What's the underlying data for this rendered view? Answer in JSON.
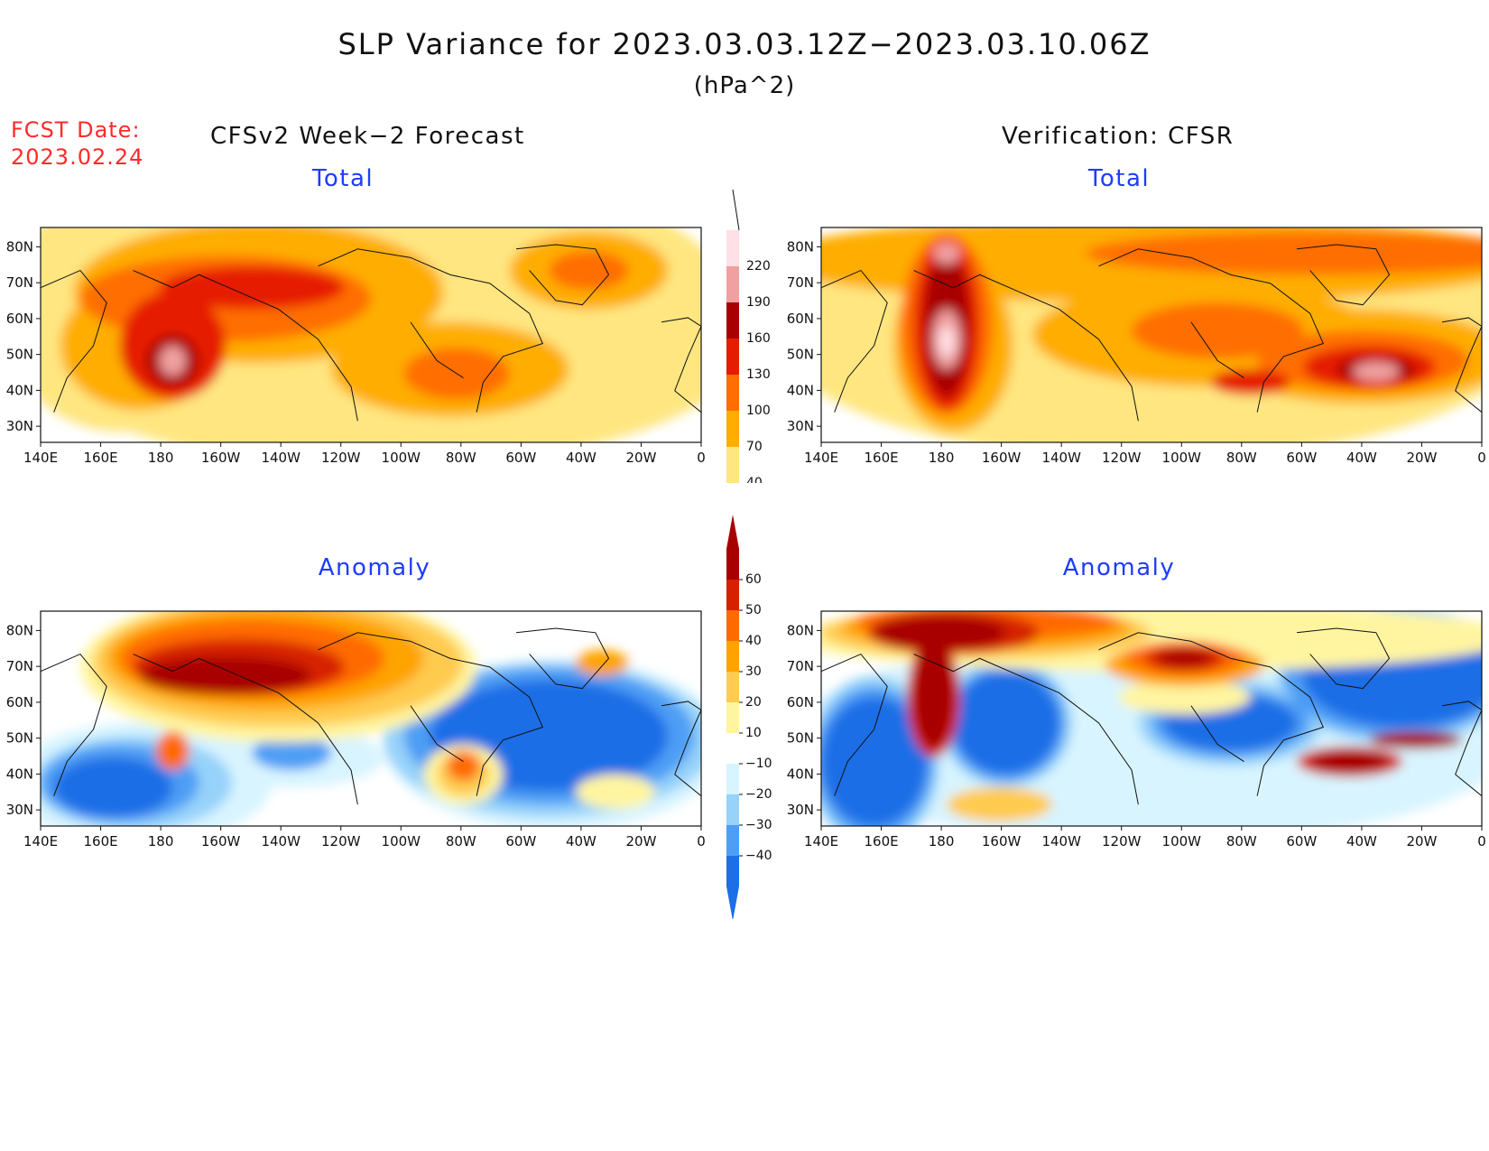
{
  "title": "SLP Variance for 2023.03.03.12Z−2023.03.10.06Z",
  "units": "(hPa^2)",
  "fcst_date": {
    "label": "FCST Date:",
    "value": "2023.02.24"
  },
  "left_header": "CFSv2 Week−2 Forecast",
  "right_header": "Verification: CFSR",
  "panels": {
    "forecast_total": {
      "label": "Total"
    },
    "verification_total": {
      "label": "Total"
    },
    "forecast_anomaly": {
      "label": "Anomaly"
    },
    "verification_anomaly": {
      "label": "Anomaly"
    }
  },
  "axes": {
    "lon_ticks": [
      "140E",
      "160E",
      "180",
      "160W",
      "140W",
      "120W",
      "100W",
      "80W",
      "60W",
      "40W",
      "20W",
      "0"
    ],
    "lat_ticks": [
      "80N",
      "70N",
      "60N",
      "50N",
      "40N",
      "30N"
    ]
  },
  "colorbars": {
    "total": {
      "levels": [
        "40",
        "70",
        "100",
        "130",
        "160",
        "190",
        "220"
      ],
      "colors": [
        "#ffe680",
        "#ffad00",
        "#ff6e00",
        "#e61c00",
        "#a80000",
        "#f0a0a0",
        "#ffe0e6"
      ]
    },
    "anomaly": {
      "levels": [
        "60",
        "50",
        "40",
        "30",
        "20",
        "10",
        "−10",
        "−20",
        "−30",
        "−40"
      ],
      "colors": [
        "#a80000",
        "#d62000",
        "#ff6a00",
        "#ffa300",
        "#ffcb50",
        "#fff5a0",
        "#ffffff",
        "#d8f4ff",
        "#96d2fa",
        "#4e9ef5",
        "#1e6ee6"
      ]
    }
  },
  "palette": {
    "t_yellow": "#ffe680",
    "t_orange": "#ffad00",
    "t_dorange": "#ff6e00",
    "t_red": "#e61c00",
    "t_dred": "#a80000",
    "t_pink": "#f0a0a0",
    "t_lpink": "#ffe0e6",
    "a_dred": "#a80000",
    "a_red": "#d62000",
    "a_orange": "#ff6a00",
    "a_lorange": "#ffa300",
    "a_yellow": "#ffcb50",
    "a_lyellow": "#fff5a0",
    "a_lblue": "#d8f4ff",
    "a_blue1": "#96d2fa",
    "a_blue2": "#4e9ef5",
    "a_blue3": "#1e6ee6"
  }
}
